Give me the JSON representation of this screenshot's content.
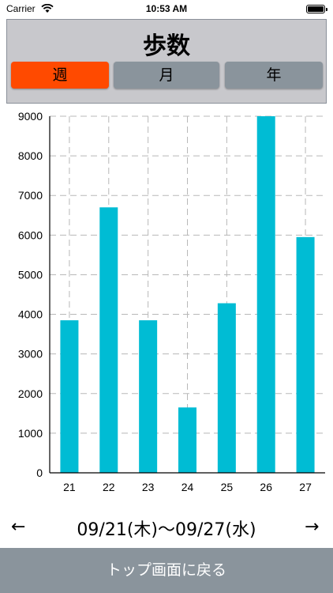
{
  "status": {
    "carrier": "Carrier",
    "time": "10:53 AM"
  },
  "header": {
    "title": "歩数"
  },
  "tabs": [
    {
      "label": "週",
      "active": true
    },
    {
      "label": "月",
      "active": false
    },
    {
      "label": "年",
      "active": false
    }
  ],
  "colors": {
    "accent": "#ff4a00",
    "bar": "#00bcd4",
    "segment": "#8a949c"
  },
  "chart_data": {
    "type": "bar",
    "categories": [
      "21",
      "22",
      "23",
      "24",
      "25",
      "26",
      "27"
    ],
    "values": [
      3850,
      6700,
      3850,
      1650,
      4280,
      9050,
      5950
    ],
    "ylim": [
      0,
      9000
    ],
    "yticks": [
      "0",
      "1000",
      "2000",
      "3000",
      "4000",
      "5000",
      "6000",
      "7000",
      "8000",
      "9000"
    ],
    "grid": true,
    "title": "",
    "xlabel": "",
    "ylabel": ""
  },
  "nav": {
    "date_range": "09/21(木)〜09/27(水)",
    "prev_icon": "arrow-left-icon",
    "next_icon": "arrow-right-icon"
  },
  "footer": {
    "back_label": "トップ画面に戻る"
  }
}
